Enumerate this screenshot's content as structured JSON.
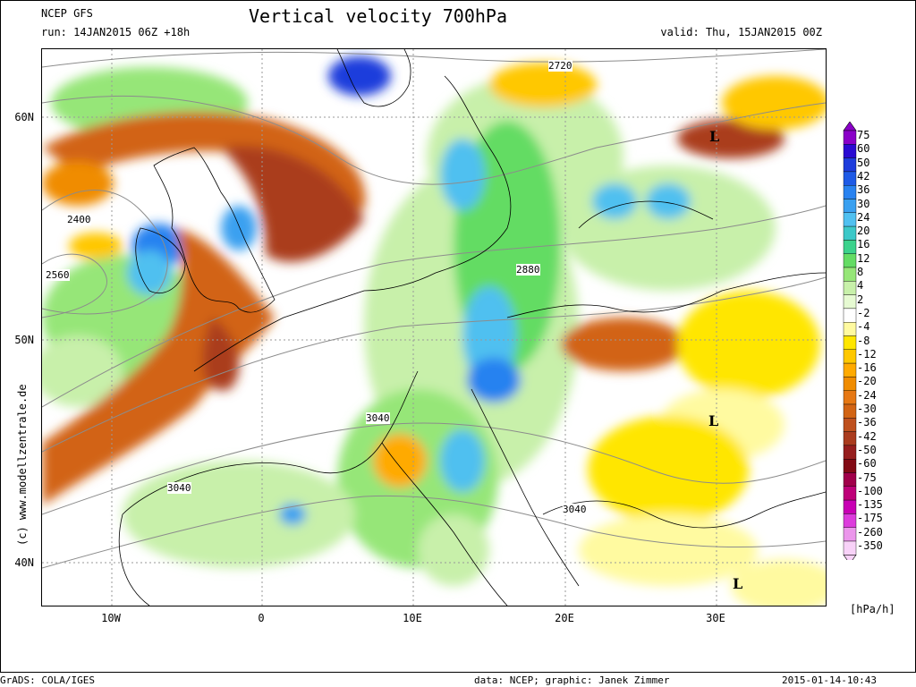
{
  "header": {
    "source": "NCEP GFS",
    "run": "run: 14JAN2015 06Z +18h",
    "title": "Vertical velocity 700hPa",
    "valid": "valid: Thu, 15JAN2015 00Z"
  },
  "map": {
    "lat_labels": [
      "60N",
      "50N",
      "40N"
    ],
    "lon_labels": [
      "10W",
      "0",
      "10E",
      "20E",
      "30E"
    ],
    "contour_labels": [
      "2720",
      "2400",
      "2560",
      "2880",
      "3040",
      "3040",
      "3040"
    ],
    "pressure_markers": [
      "L",
      "L",
      "L"
    ]
  },
  "colorbar": {
    "levels": [
      "75",
      "60",
      "50",
      "42",
      "36",
      "30",
      "24",
      "20",
      "16",
      "12",
      "8",
      "4",
      "2",
      "-2",
      "-4",
      "-8",
      "-12",
      "-16",
      "-20",
      "-24",
      "-30",
      "-36",
      "-42",
      "-50",
      "-60",
      "-75",
      "-100",
      "-135",
      "-175",
      "-260",
      "-350"
    ],
    "colors": [
      "#8a00c8",
      "#2a0ad2",
      "#1e3cdc",
      "#1e5ae6",
      "#2882f0",
      "#3aa0f0",
      "#50c0f0",
      "#3cc8c8",
      "#3cd28c",
      "#64dc64",
      "#96e678",
      "#c8f0aa",
      "#e6fad2",
      "#ffffff",
      "#fffaa0",
      "#ffe600",
      "#ffc800",
      "#ffaa00",
      "#f08c00",
      "#e67814",
      "#d26414",
      "#be501e",
      "#aa3c1e",
      "#961e1e",
      "#820a14",
      "#a0004a",
      "#be0078",
      "#c800b4",
      "#dc3cdc",
      "#eb96eb",
      "#f8d2f8"
    ],
    "unit": "[hPa/h]"
  },
  "copyright": "(c) www.modellzentrale.de",
  "footer": {
    "left": "GrADS: COLA/IGES",
    "middle": "data: NCEP; graphic: Janek Zimmer",
    "right": "2015-01-14-10:43"
  }
}
